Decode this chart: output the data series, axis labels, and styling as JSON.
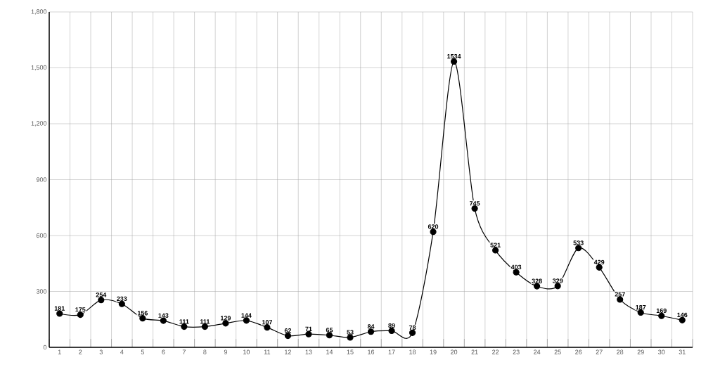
{
  "chart_data": {
    "type": "line",
    "categories": [
      "1",
      "2",
      "3",
      "4",
      "5",
      "6",
      "7",
      "8",
      "9",
      "10",
      "11",
      "12",
      "13",
      "14",
      "15",
      "16",
      "17",
      "18",
      "19",
      "20",
      "21",
      "22",
      "23",
      "24",
      "25",
      "26",
      "27",
      "28",
      "29",
      "30",
      "31"
    ],
    "values": [
      181,
      175,
      254,
      233,
      156,
      143,
      111,
      111,
      129,
      144,
      107,
      62,
      71,
      65,
      53,
      84,
      89,
      78,
      620,
      1534,
      745,
      521,
      403,
      328,
      329,
      533,
      429,
      257,
      187,
      169,
      146
    ],
    "color": "#000000",
    "marker": "circle",
    "line_style": "solid",
    "data_labels": true,
    "grid": true,
    "ylim": [
      0,
      1800
    ],
    "yticks": [
      0,
      300,
      600,
      900,
      {
        "value": 1200,
        "label": "1,200"
      },
      {
        "value": 1500,
        "label": "1,500"
      },
      {
        "value": 1800,
        "label": "1,800"
      }
    ]
  }
}
